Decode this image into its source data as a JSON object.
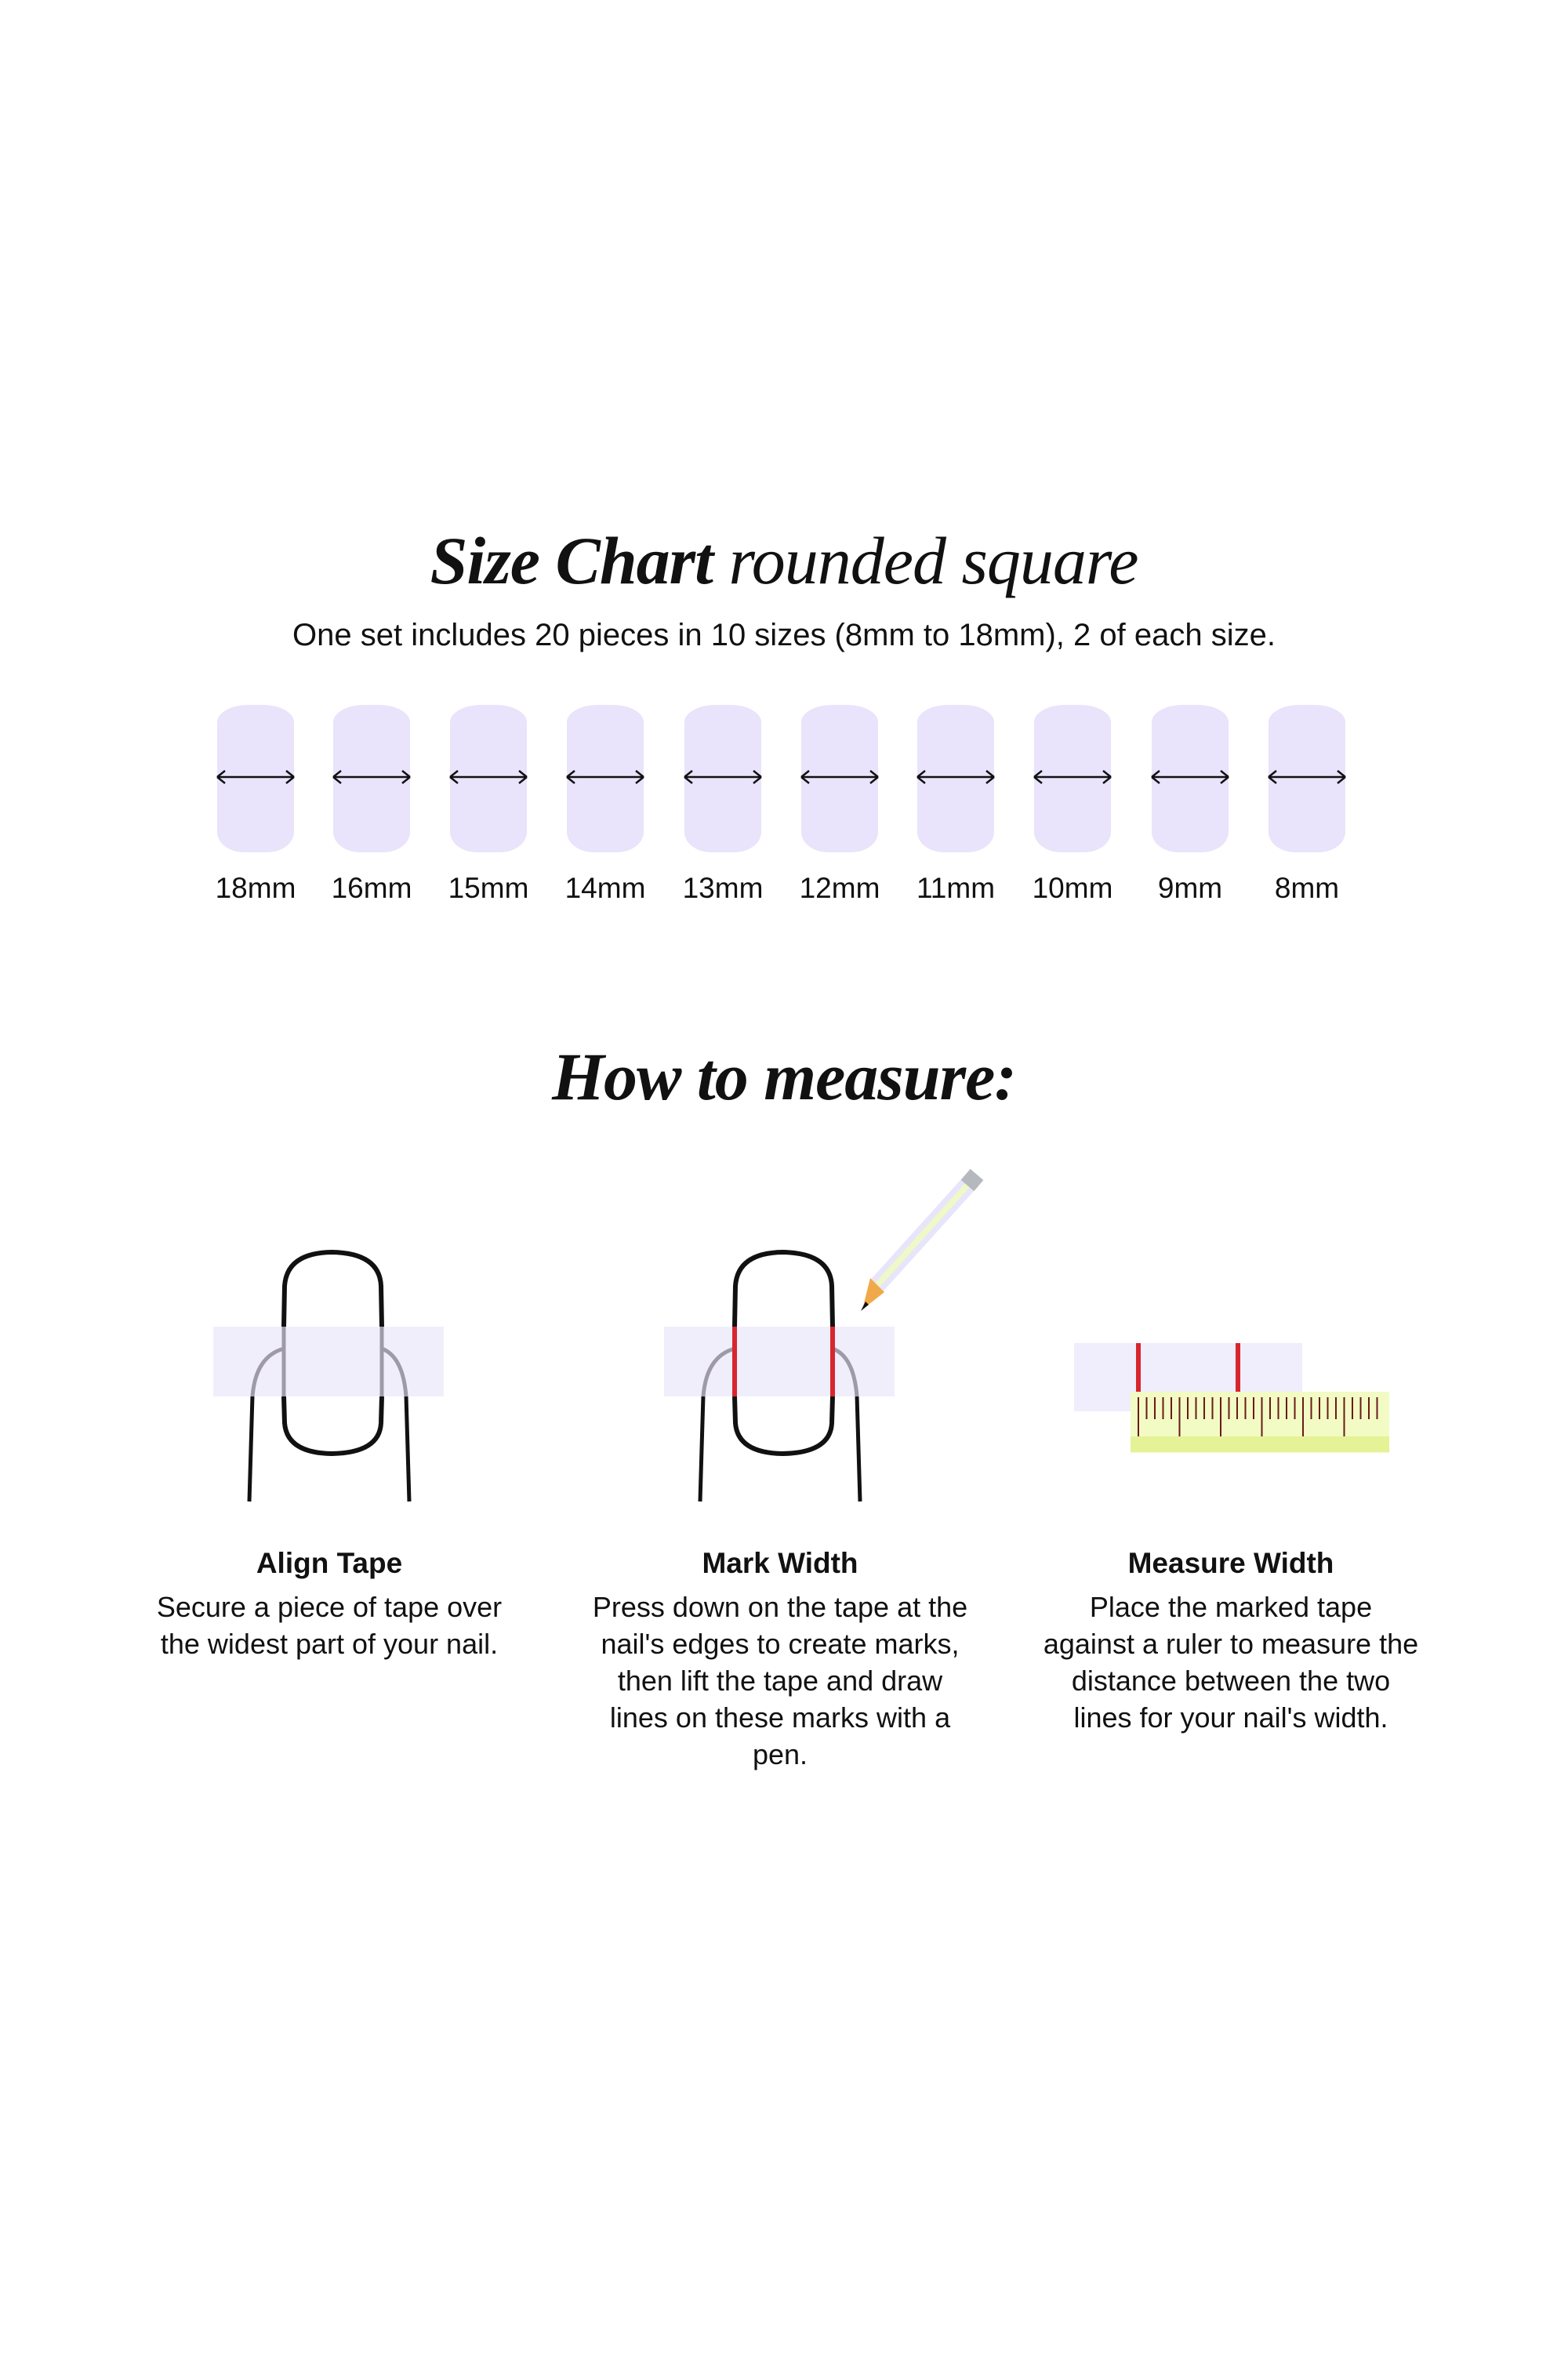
{
  "size_chart": {
    "title_bold": "Size Chart",
    "title_light": "rounded square",
    "subtitle": "One set includes 20 pieces in 10 sizes (8mm to 18mm), 2 of each size.",
    "nail_color": "#e9e3fb",
    "sizes": [
      "18mm",
      "16mm",
      "15mm",
      "14mm",
      "13mm",
      "12mm",
      "11mm",
      "10mm",
      "9mm",
      "8mm"
    ]
  },
  "how_to": {
    "title": "How to measure:",
    "tape_color": "#f0edfc",
    "mark_color": "#d7262e",
    "ruler_color": "#f2fbc4",
    "steps": [
      {
        "title": "Align Tape",
        "description": "Secure a piece of tape over the widest part of your nail.",
        "icon": "finger-tape-icon"
      },
      {
        "title": "Mark Width",
        "description": "Press down on the tape at the nail's edges to create marks, then lift the tape and draw lines on these marks with a pen.",
        "icon": "finger-mark-pencil-icon"
      },
      {
        "title": "Measure Width",
        "description": "Place the marked tape against a ruler to measure the distance between the two lines for your nail's width.",
        "icon": "tape-ruler-icon"
      }
    ]
  }
}
